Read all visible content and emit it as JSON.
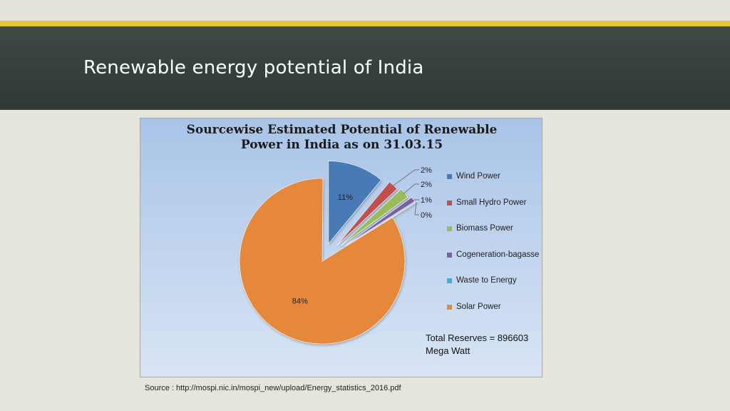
{
  "slide": {
    "title": "Renewable energy potential of India"
  },
  "chart_data": {
    "type": "pie",
    "title_lines": [
      "Sourcewise Estimated Potential of Renewable",
      "Power in India as on 31.03.15"
    ],
    "categories": [
      "Wind Power",
      "Small Hydro Power",
      "Biomass Power",
      "Cogeneration-bagasse",
      "Waste to Energy",
      "Solar Power"
    ],
    "values": [
      11,
      2,
      2,
      1,
      0,
      84
    ],
    "data_labels": [
      "11%",
      "2%",
      "2%",
      "1%",
      "0%",
      "84%"
    ],
    "colors": [
      "#4a7ab8",
      "#c0504d",
      "#9bbb59",
      "#7d60a0",
      "#4bacc6",
      "#e5883b"
    ],
    "legend": {
      "position": "right"
    },
    "annotation_lines": [
      "Total Reserves = 896603",
      "Mega Watt"
    ]
  },
  "source": "Source : http://mospi.nic.in/mospi_new/upload/Energy_statistics_2016.pdf"
}
